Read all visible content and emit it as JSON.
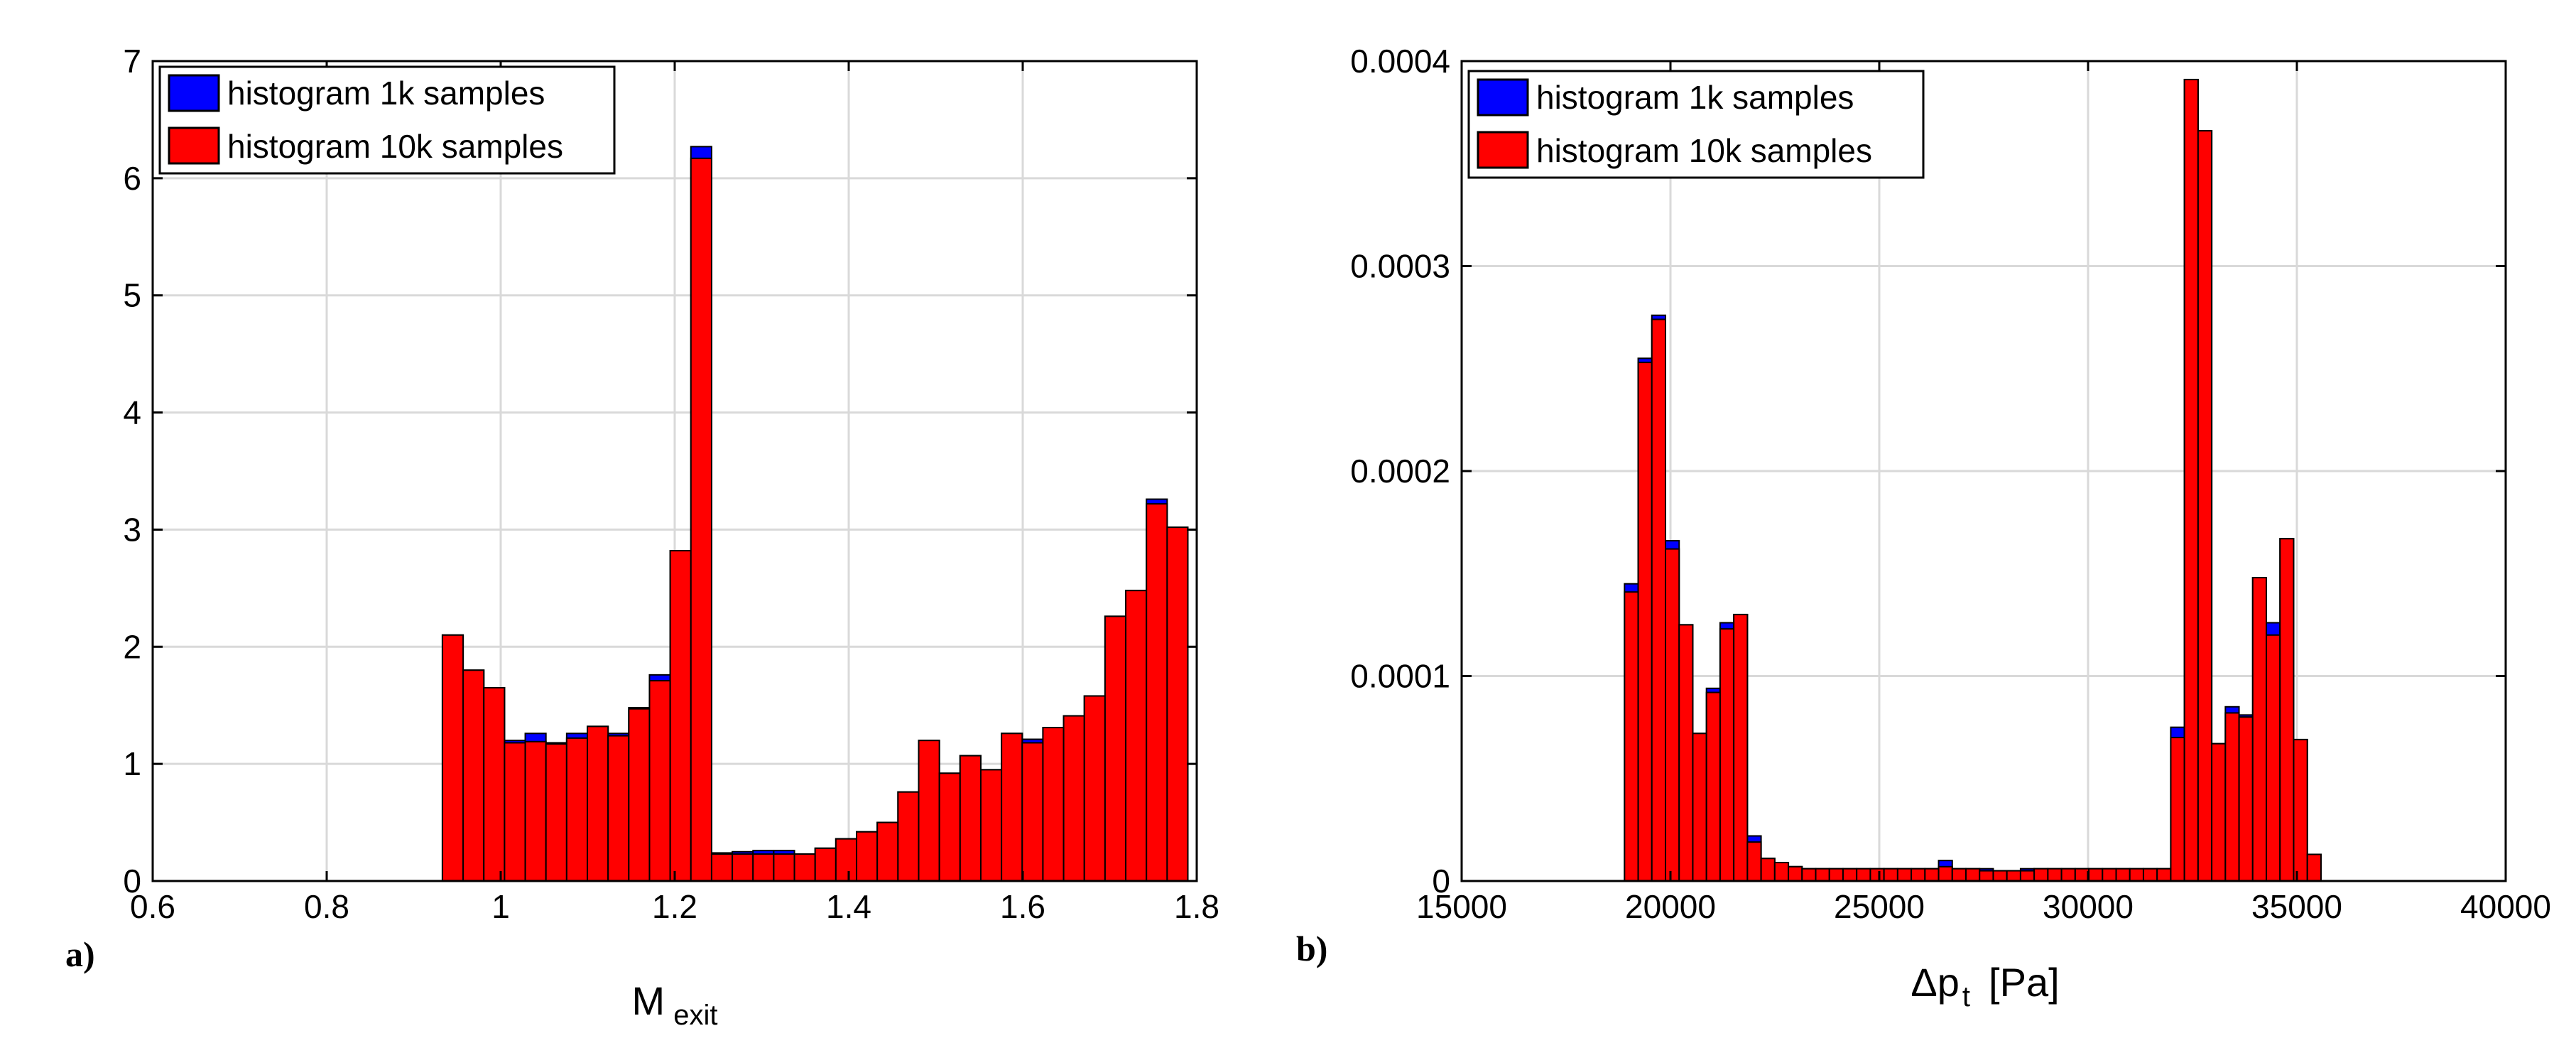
{
  "legend_colors": {
    "s1k": "#0000ff",
    "s10k": "#ff0000"
  },
  "chart_data": [
    {
      "type": "bar",
      "panel_label": "a)",
      "xlabel_main": "M",
      "xlabel_sub": "exit",
      "xlim": [
        0.6,
        1.8
      ],
      "ylim": [
        0,
        7
      ],
      "xticks": [
        "0.6",
        "0.8",
        "1",
        "1.2",
        "1.4",
        "1.6",
        "1.8"
      ],
      "yticks": [
        "0",
        "1",
        "2",
        "3",
        "4",
        "5",
        "6",
        "7"
      ],
      "grid": true,
      "legend_position": "top-left",
      "bin_start": 0.933,
      "bin_width": 0.0238,
      "series": [
        {
          "name": "histogram 1k samples",
          "color": "#0000ff",
          "values": [
            2.1,
            1.8,
            1.65,
            1.2,
            1.26,
            1.18,
            1.26,
            1.32,
            1.26,
            1.48,
            1.76,
            2.82,
            6.27,
            0.24,
            0.25,
            0.26,
            0.26,
            0.23,
            0.28,
            0.36,
            0.42,
            0.5,
            0.76,
            1.2,
            0.92,
            1.07,
            0.95,
            1.26,
            1.21,
            1.31,
            1.41,
            1.58,
            2.26,
            2.48,
            3.26,
            3.02
          ]
        },
        {
          "name": "histogram 10k samples",
          "color": "#ff0000",
          "values": [
            2.1,
            1.8,
            1.65,
            1.18,
            1.19,
            1.17,
            1.22,
            1.32,
            1.24,
            1.47,
            1.71,
            2.82,
            6.17,
            0.23,
            0.23,
            0.23,
            0.23,
            0.23,
            0.28,
            0.36,
            0.42,
            0.5,
            0.76,
            1.2,
            0.92,
            1.07,
            0.95,
            1.26,
            1.18,
            1.31,
            1.41,
            1.58,
            2.26,
            2.48,
            3.22,
            3.02
          ]
        }
      ]
    },
    {
      "type": "bar",
      "panel_label": "b)",
      "xlabel_main": "Δp",
      "xlabel_sub": "t",
      "xlabel_unit": "[Pa]",
      "xlim": [
        15000,
        40000
      ],
      "ylim": [
        0,
        0.0004
      ],
      "xticks": [
        "15000",
        "20000",
        "25000",
        "30000",
        "35000",
        "40000"
      ],
      "yticks": [
        "0",
        "0.0001",
        "0.0002",
        "0.0003",
        "0.0004"
      ],
      "grid": true,
      "legend_position": "top-left",
      "bin_start": 18900,
      "bin_width": 327,
      "series": [
        {
          "name": "histogram 1k samples",
          "color": "#0000ff",
          "values": [
            0.000145,
            0.000255,
            0.000276,
            0.000166,
            0.000125,
            7.2e-05,
            9.4e-05,
            0.000126,
            0.00013,
            2.2e-05,
            1.1e-05,
            9e-06,
            7e-06,
            6e-06,
            6e-06,
            6e-06,
            6e-06,
            6e-06,
            6e-06,
            6e-06,
            6e-06,
            6e-06,
            6e-06,
            1e-05,
            6e-06,
            6e-06,
            6e-06,
            5e-06,
            5e-06,
            6e-06,
            6e-06,
            6e-06,
            6e-06,
            6e-06,
            6e-06,
            6e-06,
            6e-06,
            6e-06,
            6e-06,
            6e-06,
            7.5e-05,
            0.000391,
            0.000366,
            6.7e-05,
            8.5e-05,
            8.1e-05,
            0.000148,
            0.000126,
            0.000167,
            6.9e-05,
            1.3e-05
          ]
        },
        {
          "name": "histogram 10k samples",
          "color": "#ff0000",
          "values": [
            0.000141,
            0.000253,
            0.000274,
            0.000162,
            0.000125,
            7.2e-05,
            9.2e-05,
            0.000123,
            0.00013,
            1.9e-05,
            1.1e-05,
            9e-06,
            7e-06,
            6e-06,
            6e-06,
            6e-06,
            6e-06,
            6e-06,
            6e-06,
            6e-06,
            6e-06,
            6e-06,
            6e-06,
            7e-06,
            6e-06,
            6e-06,
            5e-06,
            5e-06,
            5e-06,
            5e-06,
            6e-06,
            6e-06,
            6e-06,
            6e-06,
            6e-06,
            6e-06,
            6e-06,
            6e-06,
            6e-06,
            6e-06,
            7e-05,
            0.000391,
            0.000366,
            6.7e-05,
            8.2e-05,
            8e-05,
            0.000148,
            0.00012,
            0.000167,
            6.9e-05,
            1.3e-05
          ]
        }
      ]
    }
  ]
}
